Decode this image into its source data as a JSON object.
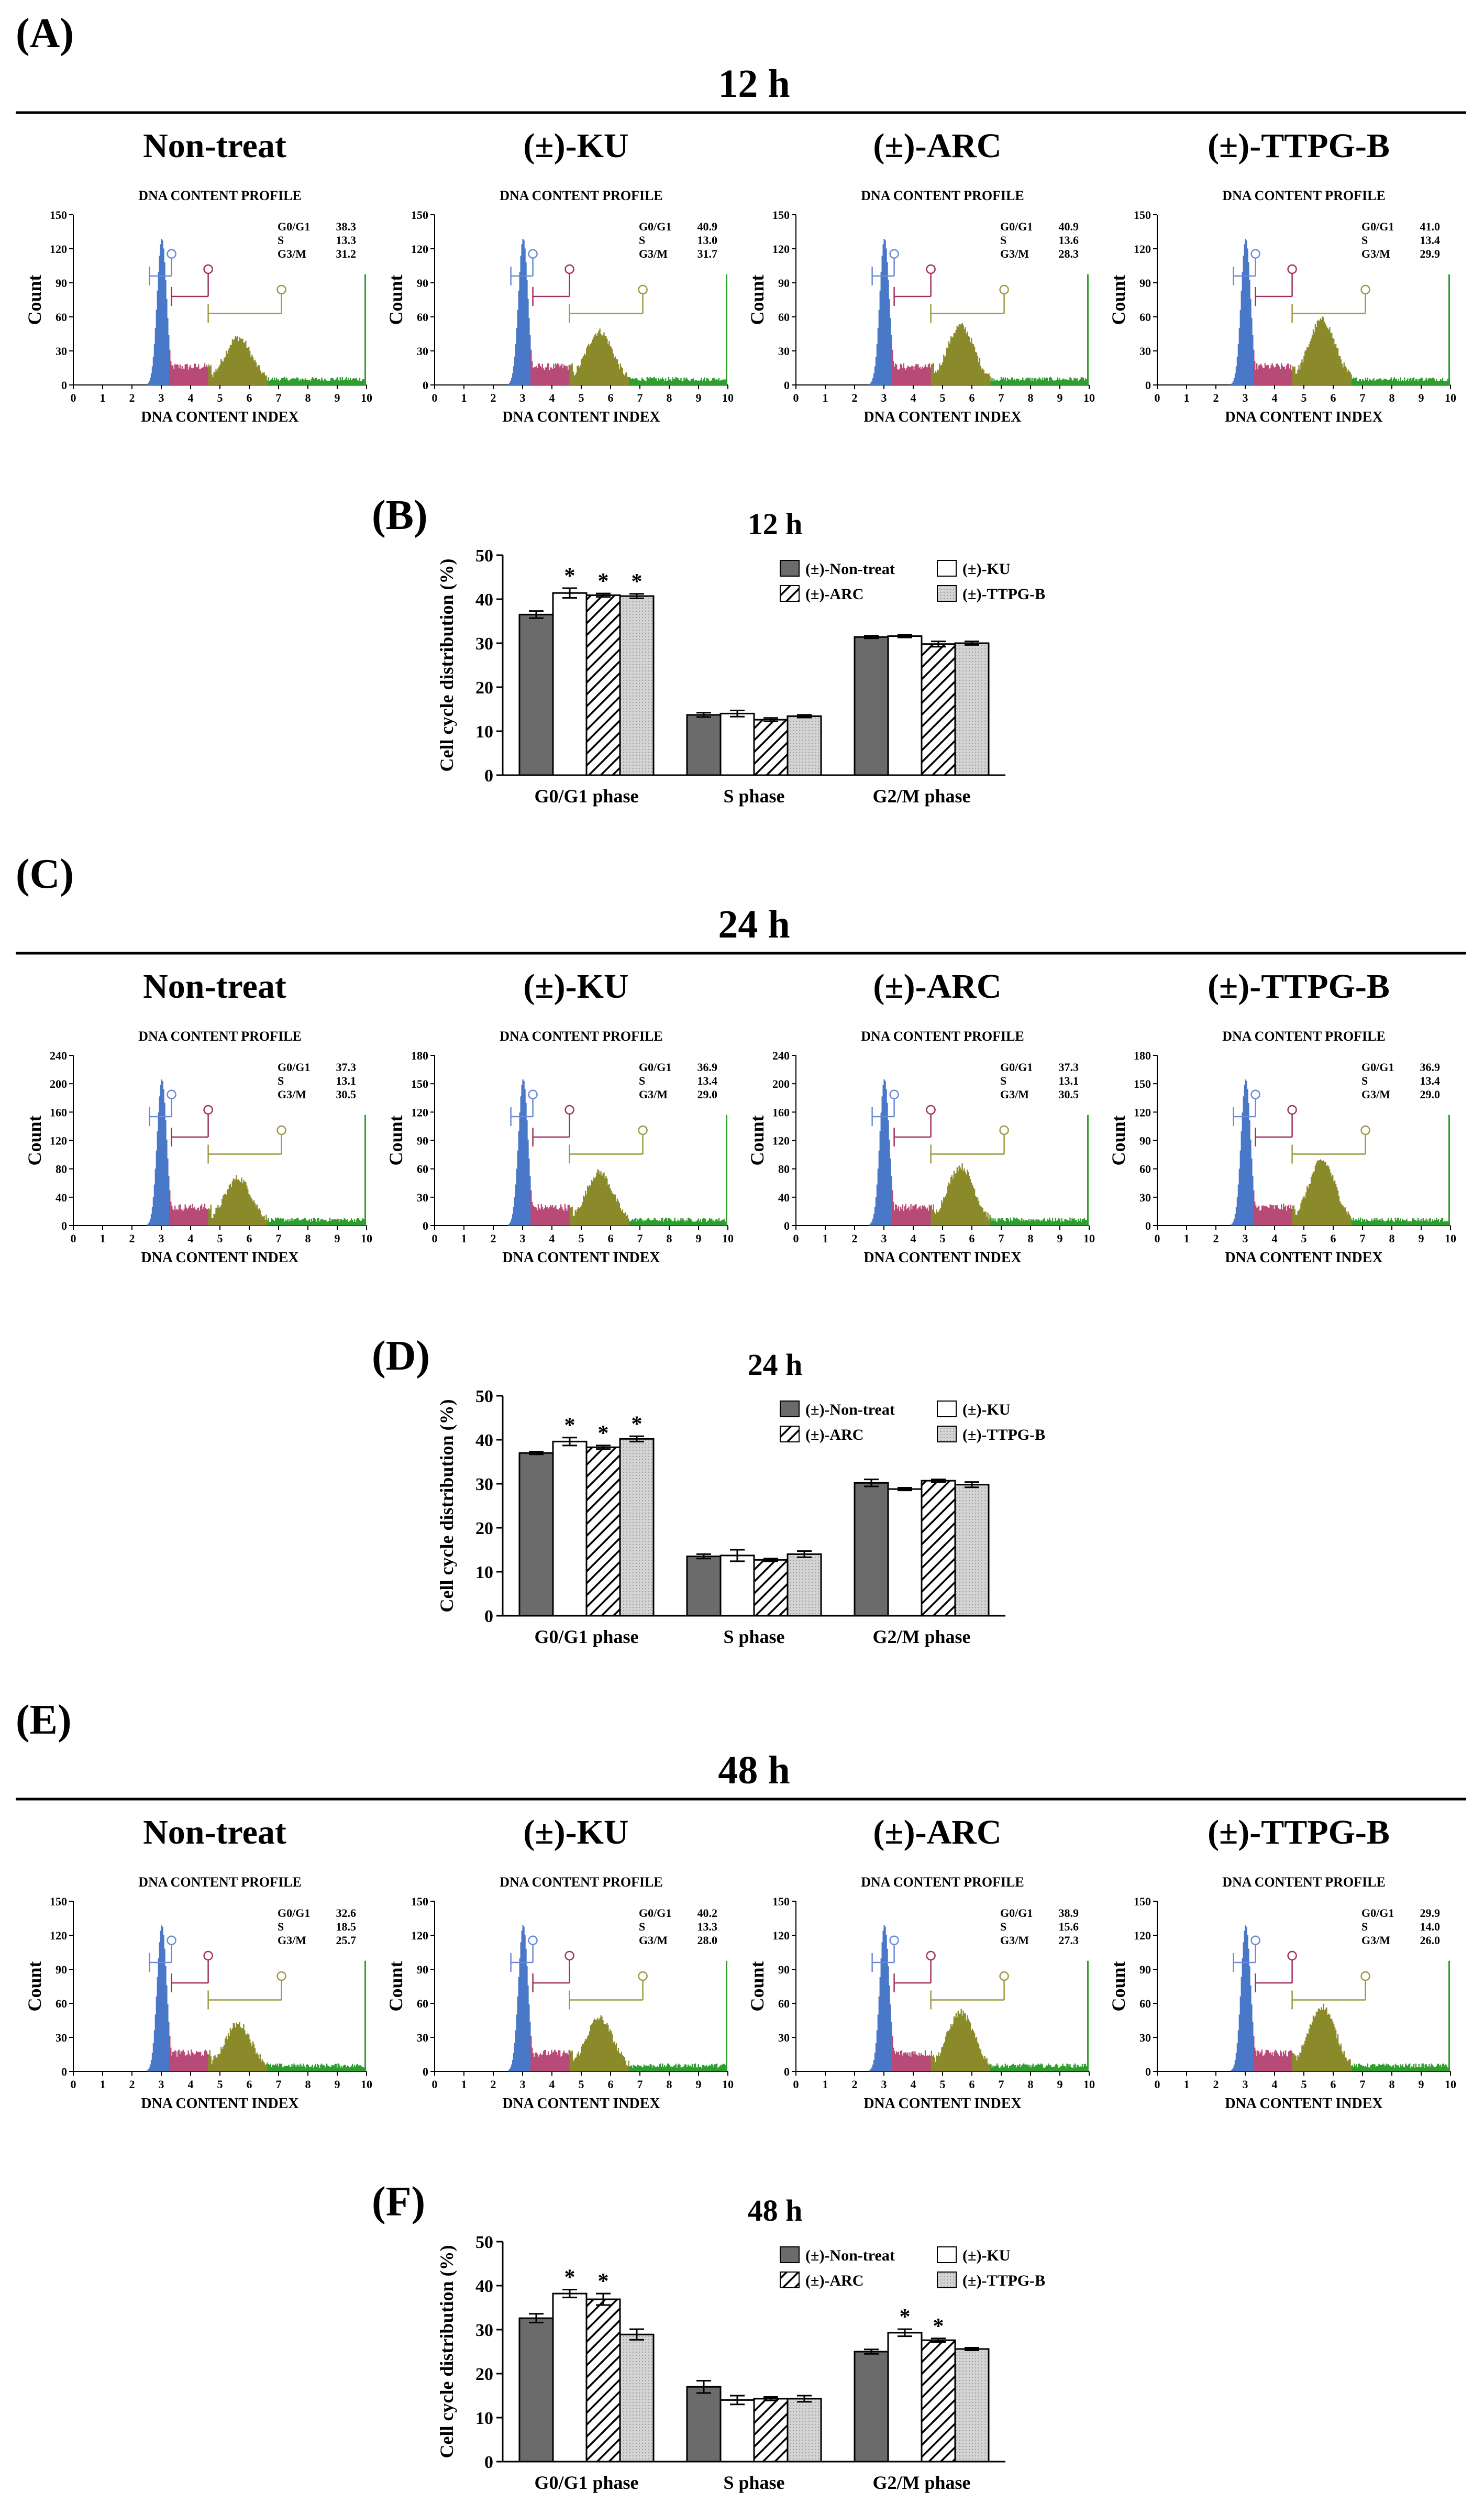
{
  "figure": {
    "profile_title": "DNA CONTENT PROFILE",
    "profile_xlabel": "DNA CONTENT INDEX",
    "profile_ylabel": "Count",
    "bar_ylabel": "Cell cycle distribution (%)",
    "phase_labels": [
      "G0/G1",
      "S",
      "G3/M"
    ],
    "sections": [
      {
        "letter": "(A)",
        "time": "12 h",
        "panels": [
          {
            "title": "Non-treat",
            "yticks": [
              "150",
              "120",
              "90",
              "60",
              "30",
              "0"
            ],
            "stats": [
              "38.3",
              "13.3",
              "31.2"
            ]
          },
          {
            "title": "(±)-KU",
            "yticks": [
              "150",
              "120",
              "90",
              "60",
              "30",
              "0"
            ],
            "stats": [
              "40.9",
              "13.0",
              "31.7"
            ]
          },
          {
            "title": "(±)-ARC",
            "yticks": [
              "150",
              "120",
              "90",
              "60",
              "30",
              "0"
            ],
            "stats": [
              "40.9",
              "13.6",
              "28.3"
            ]
          },
          {
            "title": "(±)-TTPG-B",
            "yticks": [
              "150",
              "120",
              "90",
              "60",
              "30",
              "0"
            ],
            "stats": [
              "41.0",
              "13.4",
              "29.9"
            ]
          }
        ]
      },
      {
        "letter": "(C)",
        "time": "24 h",
        "panels": [
          {
            "title": "Non-treat",
            "yticks": [
              "240",
              "200",
              "160",
              "120",
              "80",
              "40",
              "0"
            ],
            "stats": [
              "37.3",
              "13.1",
              "30.5"
            ]
          },
          {
            "title": "(±)-KU",
            "yticks": [
              "180",
              "150",
              "120",
              "90",
              "60",
              "30",
              "0"
            ],
            "stats": [
              "36.9",
              "13.4",
              "29.0"
            ]
          },
          {
            "title": "(±)-ARC",
            "yticks": [
              "240",
              "200",
              "160",
              "120",
              "80",
              "40",
              "0"
            ],
            "stats": [
              "37.3",
              "13.1",
              "30.5"
            ]
          },
          {
            "title": "(±)-TTPG-B",
            "yticks": [
              "180",
              "150",
              "120",
              "90",
              "60",
              "30",
              "0"
            ],
            "stats": [
              "36.9",
              "13.4",
              "29.0"
            ]
          }
        ]
      },
      {
        "letter": "(E)",
        "time": "48 h",
        "panels": [
          {
            "title": "Non-treat",
            "yticks": [
              "150",
              "120",
              "90",
              "60",
              "30",
              "0"
            ],
            "stats": [
              "32.6",
              "18.5",
              "25.7"
            ]
          },
          {
            "title": "(±)-KU",
            "yticks": [
              "150",
              "120",
              "90",
              "60",
              "30",
              "0"
            ],
            "stats": [
              "40.2",
              "13.3",
              "28.0"
            ]
          },
          {
            "title": "(±)-ARC",
            "yticks": [
              "150",
              "120",
              "90",
              "60",
              "30",
              "0"
            ],
            "stats": [
              "38.9",
              "15.6",
              "27.3"
            ]
          },
          {
            "title": "(±)-TTPG-B",
            "yticks": [
              "150",
              "120",
              "90",
              "60",
              "30",
              "0"
            ],
            "stats": [
              "29.9",
              "14.0",
              "26.0"
            ]
          }
        ]
      }
    ],
    "profile_xticks": [
      "0",
      "1",
      "2",
      "3",
      "4",
      "5",
      "6",
      "7",
      "8",
      "9",
      "10"
    ],
    "colors": {
      "g1_peak": "#4a78c8",
      "s_phase": "#b84a78",
      "g2_peak": "#8a8a2a",
      "tail": "#2e9e2e",
      "gate_g1": "#6a8ad8",
      "gate_s": "#a03060",
      "gate_g2": "#9a9a40",
      "bar_nontreat": "#6b6b6b",
      "bar_ttpg": "#d4d4d4"
    }
  },
  "chart_data": [
    {
      "type": "bar",
      "letter": "(B)",
      "title": "12 h",
      "categories": [
        "G0/G1 phase",
        "S phase",
        "G2/M phase"
      ],
      "ylabel": "Cell cycle distribution (%)",
      "ylim": [
        0,
        50
      ],
      "yticks": [
        0,
        10,
        20,
        30,
        40,
        50
      ],
      "series": [
        {
          "name": "(±)-Non-treat",
          "values": [
            36.5,
            13.7,
            31.4
          ],
          "errors": [
            0.8,
            0.5,
            0.3
          ]
        },
        {
          "name": "(±)-KU",
          "values": [
            41.4,
            14.0,
            31.6
          ],
          "errors": [
            1.1,
            0.7,
            0.3
          ]
        },
        {
          "name": "(±)-ARC",
          "values": [
            40.9,
            12.6,
            29.8
          ],
          "errors": [
            0.4,
            0.4,
            0.6
          ]
        },
        {
          "name": "(±)-TTPG-B",
          "values": [
            40.7,
            13.4,
            30.0
          ],
          "errors": [
            0.5,
            0.3,
            0.4
          ]
        }
      ],
      "significant": [
        [
          false,
          true,
          true,
          true
        ],
        [
          false,
          false,
          false,
          false
        ],
        [
          false,
          false,
          false,
          false
        ]
      ],
      "annotation": "*"
    },
    {
      "type": "bar",
      "letter": "(D)",
      "title": "24 h",
      "categories": [
        "G0/G1 phase",
        "S phase",
        "G2/M phase"
      ],
      "ylabel": "Cell cycle distribution (%)",
      "ylim": [
        0,
        50
      ],
      "yticks": [
        0,
        10,
        20,
        30,
        40,
        50
      ],
      "series": [
        {
          "name": "(±)-Non-treat",
          "values": [
            37.0,
            13.5,
            30.2
          ],
          "errors": [
            0.3,
            0.5,
            0.8
          ]
        },
        {
          "name": "(±)-KU",
          "values": [
            39.6,
            13.7,
            28.8
          ],
          "errors": [
            0.9,
            1.3,
            0.3
          ]
        },
        {
          "name": "(±)-ARC",
          "values": [
            38.3,
            12.7,
            30.7
          ],
          "errors": [
            0.4,
            0.3,
            0.3
          ]
        },
        {
          "name": "(±)-TTPG-B",
          "values": [
            40.2,
            14.0,
            29.8
          ],
          "errors": [
            0.6,
            0.7,
            0.6
          ]
        }
      ],
      "significant": [
        [
          false,
          true,
          true,
          true
        ],
        [
          false,
          false,
          false,
          false
        ],
        [
          false,
          false,
          false,
          false
        ]
      ],
      "annotation": "*"
    },
    {
      "type": "bar",
      "letter": "(F)",
      "title": "48 h",
      "categories": [
        "G0/G1 phase",
        "S phase",
        "G2/M phase"
      ],
      "ylabel": "Cell cycle distribution (%)",
      "ylim": [
        0,
        50
      ],
      "yticks": [
        0,
        10,
        20,
        30,
        40,
        50
      ],
      "series": [
        {
          "name": "(±)-Non-treat",
          "values": [
            32.6,
            17.0,
            25.0
          ],
          "errors": [
            1.0,
            1.4,
            0.5
          ]
        },
        {
          "name": "(±)-KU",
          "values": [
            38.2,
            14.0,
            29.3
          ],
          "errors": [
            0.9,
            1.0,
            0.8
          ]
        },
        {
          "name": "(±)-ARC",
          "values": [
            36.9,
            14.3,
            27.6
          ],
          "errors": [
            1.3,
            0.4,
            0.4
          ]
        },
        {
          "name": "(±)-TTPG-B",
          "values": [
            28.9,
            14.3,
            25.6
          ],
          "errors": [
            1.2,
            0.7,
            0.3
          ]
        }
      ],
      "significant": [
        [
          false,
          true,
          true,
          false
        ],
        [
          false,
          false,
          false,
          false
        ],
        [
          false,
          true,
          true,
          false
        ]
      ],
      "annotation": "*"
    }
  ]
}
